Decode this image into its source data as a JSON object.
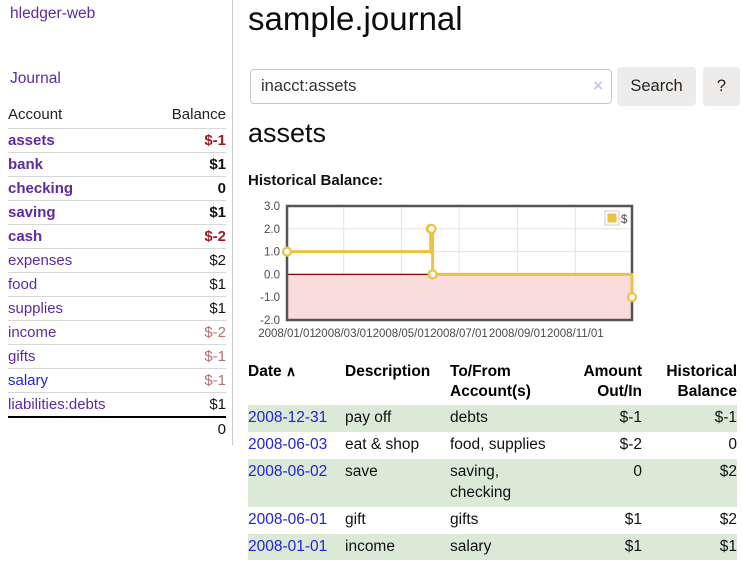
{
  "app": {
    "brand": "hledger-web"
  },
  "sidebar": {
    "journal_label": "Journal",
    "accounts_table": {
      "headers": [
        "Account",
        "Balance"
      ],
      "rows": [
        {
          "account": "assets",
          "balance": "$-1",
          "indent": 1,
          "bold": true
        },
        {
          "account": "bank",
          "balance": "$1",
          "indent": 2,
          "bold": true
        },
        {
          "account": "checking",
          "balance": "0",
          "indent": 3,
          "bold": true
        },
        {
          "account": "saving",
          "balance": "$1",
          "indent": 3,
          "bold": true
        },
        {
          "account": "cash",
          "balance": "$-2",
          "indent": 2,
          "bold": true
        },
        {
          "account": "expenses",
          "balance": "$2",
          "indent": 1,
          "bold": false
        },
        {
          "account": "food",
          "balance": "$1",
          "indent": 2,
          "bold": false
        },
        {
          "account": "supplies",
          "balance": "$1",
          "indent": 2,
          "bold": false
        },
        {
          "account": "income",
          "balance": "$-2",
          "indent": 1,
          "bold": false
        },
        {
          "account": "gifts",
          "balance": "$-1",
          "indent": 2,
          "bold": false
        },
        {
          "account": "salary",
          "balance": "$-1",
          "indent": 2,
          "bold": false,
          "unvisited": true
        },
        {
          "account": "liabilities:debts",
          "balance": "$1",
          "indent": 1,
          "bold": false
        }
      ],
      "total": "0"
    }
  },
  "header": {
    "title": "sample.journal"
  },
  "search": {
    "value": "inacct:assets",
    "clear_icon": "×",
    "button": "Search",
    "help_button": "?"
  },
  "account_page": {
    "title": "assets",
    "chart_label": "Historical Balance:"
  },
  "chart_data": {
    "type": "line",
    "title": "Historical Balance:",
    "x_domain": [
      0,
      365
    ],
    "ylim": [
      -2.0,
      3.0
    ],
    "y_ticks": [
      3.0,
      2.0,
      1.0,
      0.0,
      -1.0,
      -2.0
    ],
    "x_ticks": [
      {
        "pos": 0,
        "label": "2008/01/01"
      },
      {
        "pos": 60,
        "label": "2008/03/01"
      },
      {
        "pos": 121,
        "label": "2008/05/01"
      },
      {
        "pos": 182,
        "label": "2008/07/01"
      },
      {
        "pos": 244,
        "label": "2008/09/01"
      },
      {
        "pos": 305,
        "label": "2008/11/01"
      }
    ],
    "series": [
      {
        "name": "$",
        "color": "#edc240",
        "steps": true,
        "points": [
          {
            "date": "2008/01/01",
            "x": 0,
            "y": 1.0
          },
          {
            "date": "2008/06/01",
            "x": 152,
            "y": 2.0
          },
          {
            "date": "2008/06/02",
            "x": 153,
            "y": 2.0
          },
          {
            "date": "2008/06/03",
            "x": 154,
            "y": 0.0
          },
          {
            "date": "2008/12/31",
            "x": 365,
            "y": -1.0
          }
        ]
      }
    ],
    "legend": {
      "label": "$",
      "swatch": "#edc240",
      "position": "top-right"
    },
    "grid_on": true,
    "grid_color": "#e3e3e3",
    "border_color": "#545454",
    "negative_fill": "#fadcdc",
    "zero_line_color": "#8b0000"
  },
  "register": {
    "headers": [
      "Date",
      "Description",
      "To/From Account(s)",
      "Amount Out/In",
      "Historical Balance"
    ],
    "sort_indicator": "∧",
    "rows": [
      {
        "date": "2008-12-31",
        "description": "pay off",
        "accounts": "debts",
        "amount": "$-1",
        "balance": "$-1"
      },
      {
        "date": "2008-06-03",
        "description": "eat & shop",
        "accounts": "food, supplies",
        "amount": "$-2",
        "balance": "0"
      },
      {
        "date": "2008-06-02",
        "description": "save",
        "accounts": "saving,\nchecking",
        "amount": "0",
        "balance": "$2"
      },
      {
        "date": "2008-06-01",
        "description": "gift",
        "accounts": "gifts",
        "amount": "$1",
        "balance": "$2"
      },
      {
        "date": "2008-01-01",
        "description": "income",
        "accounts": "salary",
        "amount": "$1",
        "balance": "$1"
      }
    ]
  }
}
